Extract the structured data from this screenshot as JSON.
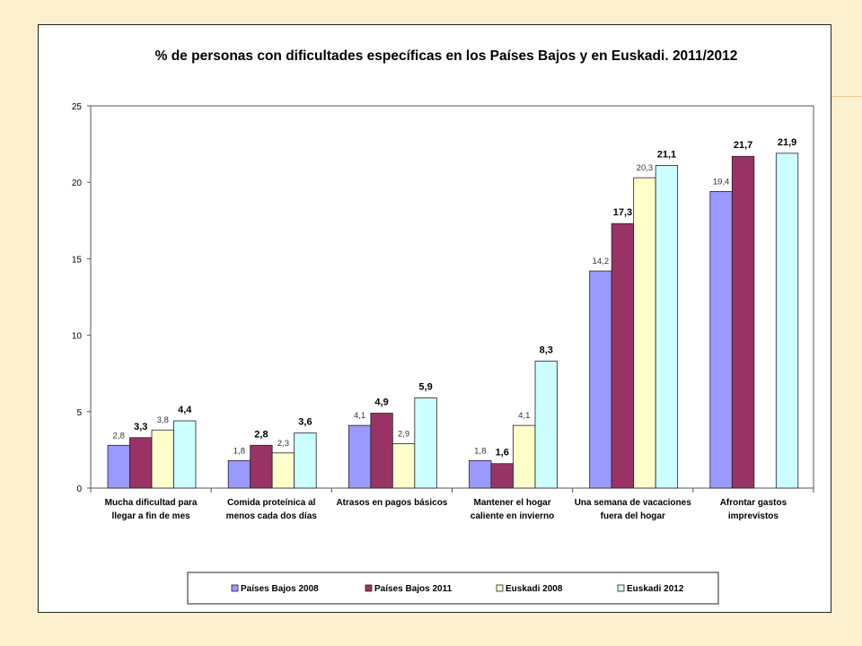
{
  "chart_data": {
    "type": "bar",
    "title": "% de personas con dificultades específicas en los Países Bajos y en Euskadi. 2011/2012",
    "ylim": [
      0,
      25
    ],
    "yticks": [
      0,
      5,
      10,
      15,
      20,
      25
    ],
    "grid": false,
    "legend_position": "bottom",
    "categories": [
      [
        "Mucha dificultad para",
        "llegar a fin de mes"
      ],
      [
        "Comida proteínica al",
        "menos cada dos días"
      ],
      [
        "Atrasos en pagos básicos"
      ],
      [
        "Mantener el hogar",
        "caliente en invierno"
      ],
      [
        "Una semana de vacaciones",
        "fuera del hogar"
      ],
      [
        "Afrontar gastos",
        "imprevistos"
      ]
    ],
    "series": [
      {
        "name": "Países Bajos 2008",
        "color": "#9999ff",
        "label_style": "small",
        "values": [
          2.8,
          1.8,
          4.1,
          1.8,
          14.2,
          19.4
        ],
        "labels": [
          "2,8",
          "1,8",
          "4,1",
          "1,8",
          "14,2",
          "19,4"
        ]
      },
      {
        "name": "Países Bajos 2011",
        "color": "#993366",
        "label_style": "big",
        "values": [
          3.3,
          2.8,
          4.9,
          1.6,
          17.3,
          21.7
        ],
        "labels": [
          "3,3",
          "2,8",
          "4,9",
          "1,6",
          "17,3",
          "21,7"
        ]
      },
      {
        "name": "Euskadi 2008",
        "color": "#ffffcc",
        "label_style": "small",
        "values": [
          3.8,
          2.3,
          2.9,
          4.1,
          20.3,
          null
        ],
        "labels": [
          "3,8",
          "2,3",
          "2,9",
          "4,1",
          "20,3",
          ""
        ]
      },
      {
        "name": "Euskadi 2012",
        "color": "#ccffff",
        "label_style": "big",
        "values": [
          4.4,
          3.6,
          5.9,
          8.3,
          21.1,
          21.9
        ],
        "labels": [
          "4,4",
          "3,6",
          "5,9",
          "8,3",
          "21,1",
          "21,9"
        ]
      }
    ]
  }
}
